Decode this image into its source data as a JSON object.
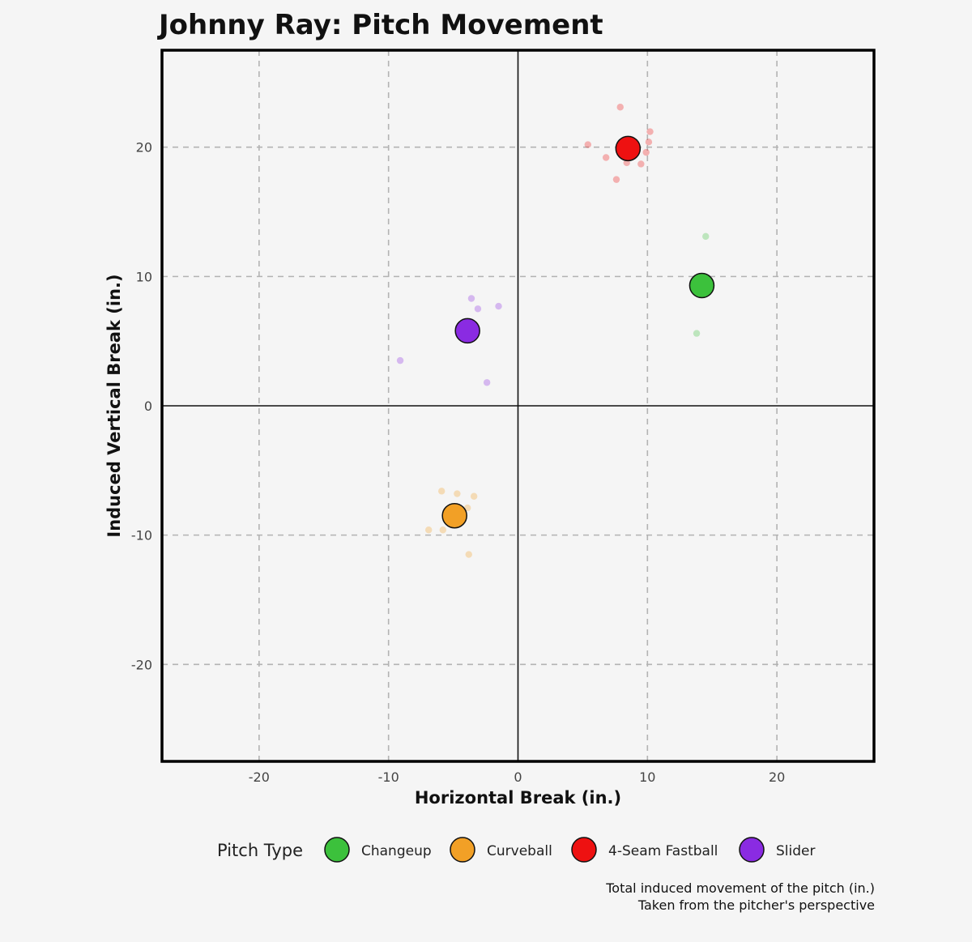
{
  "chart_data": {
    "type": "scatter",
    "title": "Johnny Ray: Pitch Movement",
    "xlabel": "Horizontal Break (in.)",
    "ylabel": "Induced Vertical Break (in.)",
    "xlim": [
      -27.5,
      27.5
    ],
    "ylim": [
      -27.5,
      27.5
    ],
    "xticks": [
      -20,
      -10,
      0,
      10,
      20
    ],
    "yticks": [
      -20,
      -10,
      0,
      10,
      20
    ],
    "xtick_labels": [
      "-20",
      "-10",
      "0",
      "10",
      "20"
    ],
    "ytick_labels": [
      "-20",
      "-10",
      "0",
      "10",
      "20"
    ],
    "grid": "dashed",
    "legend": {
      "title": "Pitch Type",
      "placement": "bottom"
    },
    "series": [
      {
        "name": "Changeup",
        "color": "#3cc13c",
        "mean": {
          "x": 14.2,
          "y": 9.3
        },
        "points": [
          {
            "x": 14.5,
            "y": 13.1
          },
          {
            "x": 13.8,
            "y": 5.6
          }
        ]
      },
      {
        "name": "Curveball",
        "color": "#f2a026",
        "mean": {
          "x": -4.9,
          "y": -8.5
        },
        "points": [
          {
            "x": -5.9,
            "y": -6.6
          },
          {
            "x": -4.7,
            "y": -6.8
          },
          {
            "x": -3.4,
            "y": -7.0
          },
          {
            "x": -3.9,
            "y": -7.9
          },
          {
            "x": -6.9,
            "y": -9.6
          },
          {
            "x": -5.8,
            "y": -9.6
          },
          {
            "x": -3.8,
            "y": -11.5
          }
        ]
      },
      {
        "name": "4-Seam Fastball",
        "color": "#ee1111",
        "mean": {
          "x": 8.5,
          "y": 19.9
        },
        "points": [
          {
            "x": 7.9,
            "y": 23.1
          },
          {
            "x": 10.2,
            "y": 21.2
          },
          {
            "x": 5.4,
            "y": 20.2
          },
          {
            "x": 10.1,
            "y": 20.4
          },
          {
            "x": 9.9,
            "y": 19.6
          },
          {
            "x": 6.8,
            "y": 19.2
          },
          {
            "x": 8.4,
            "y": 18.8
          },
          {
            "x": 9.5,
            "y": 18.7
          },
          {
            "x": 7.6,
            "y": 17.5
          }
        ]
      },
      {
        "name": "Slider",
        "color": "#8a2be2",
        "mean": {
          "x": -3.9,
          "y": 5.8
        },
        "points": [
          {
            "x": -3.6,
            "y": 8.3
          },
          {
            "x": -3.1,
            "y": 7.5
          },
          {
            "x": -1.5,
            "y": 7.7
          },
          {
            "x": -9.1,
            "y": 3.5
          },
          {
            "x": -2.4,
            "y": 1.8
          }
        ]
      }
    ],
    "caption": [
      "Total induced movement of the pitch (in.)",
      "Taken from the pitcher's perspective"
    ]
  }
}
